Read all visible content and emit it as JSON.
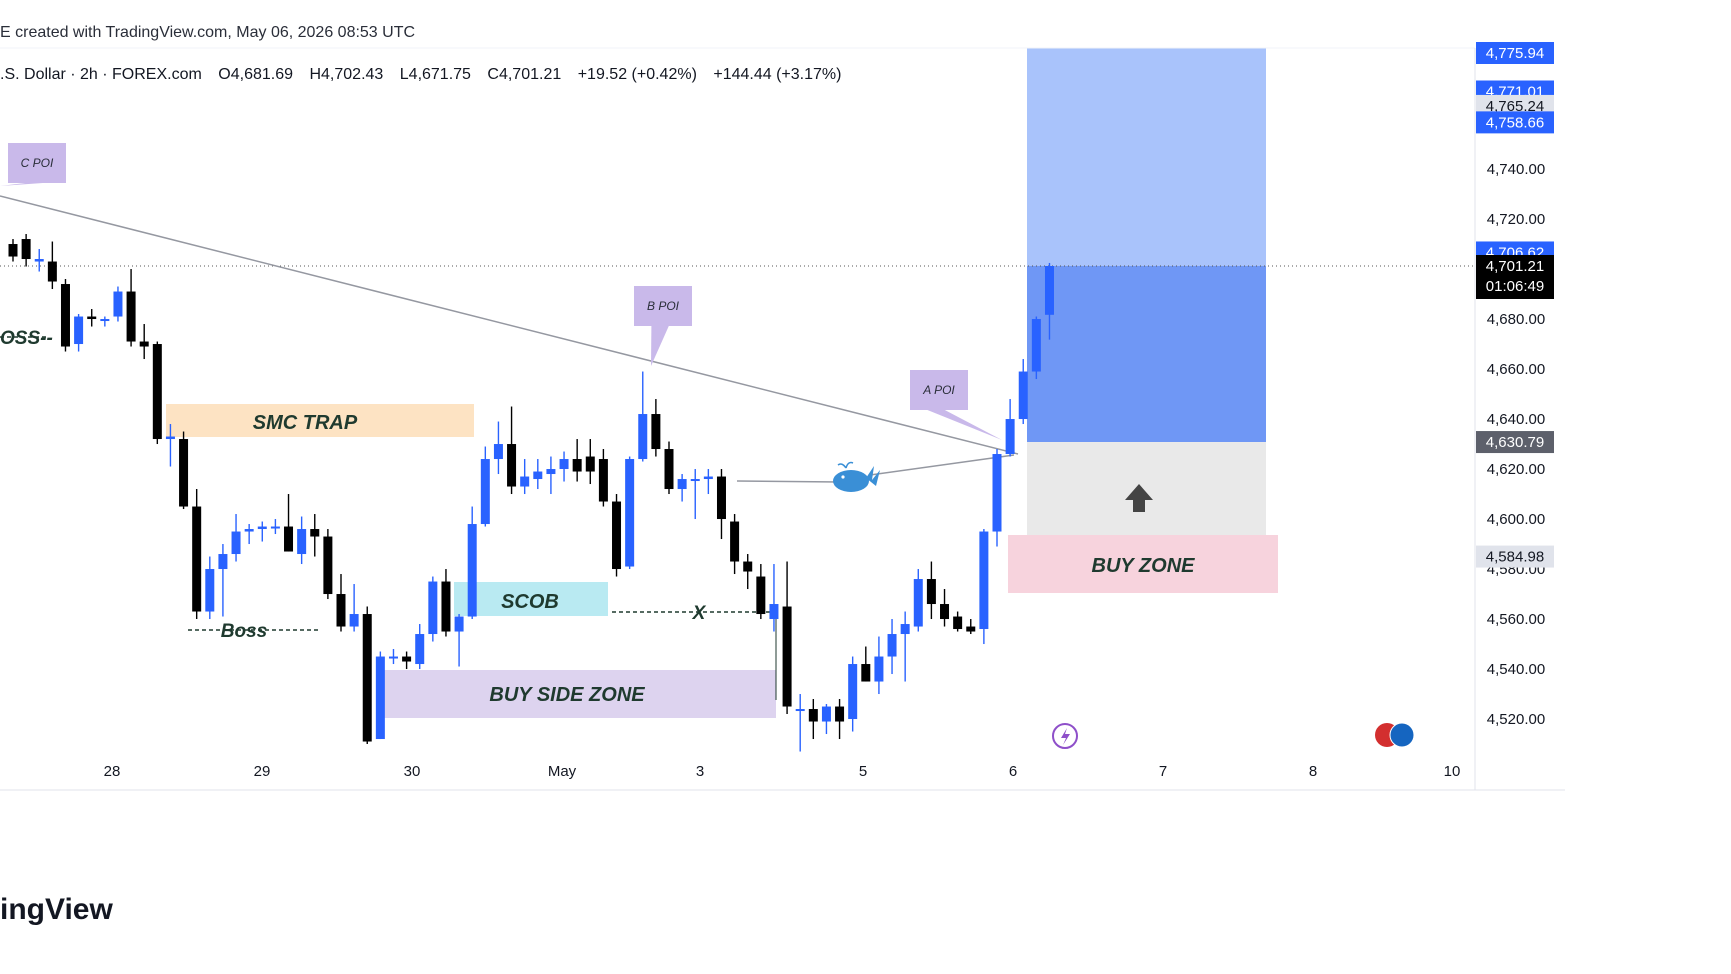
{
  "header": {
    "caption": "E created with TradingView.com, May 06, 2026 08:53 UTC"
  },
  "symbol_line": {
    "name": ".S. Dollar · 2h · FOREX.com",
    "open": "O4,681.69",
    "high": "H4,702.43",
    "low": "L4,671.75",
    "close": "C4,701.21",
    "change": "+19.52 (+0.42%)",
    "change2": "+144.44 (+3.17%)"
  },
  "footer": {
    "brand": "ingView"
  },
  "colors": {
    "bull": "#2962ff",
    "bear": "#000000",
    "target_zone_light": "#a9c3fb",
    "target_zone_dark": "#6f97f5",
    "stop_zone": "#e9e9e9",
    "buy_zone": "#f7d3dd",
    "smc_trap": "#fde3c3",
    "scob": "#b9eaf2",
    "buy_side_zone": "#ddd3ef",
    "poi_bubble": "#c9b9ea"
  },
  "chart_data": {
    "type": "candlestick",
    "ylim": [
      4505,
      4781
    ],
    "y_ticks": [
      "4,740.00",
      "4,720.00",
      "4,680.00",
      "4,660.00",
      "4,640.00",
      "4,620.00",
      "4,600.00",
      "4,560.00",
      "4,540.00",
      "4,520.00"
    ],
    "x_ticks": [
      "28",
      "29",
      "30",
      "May",
      "3",
      "5",
      "6",
      "7",
      "8",
      "10"
    ],
    "price_labels": [
      {
        "value": 4775.94,
        "text": "4,775.94",
        "style": "blue-top"
      },
      {
        "value": 4771.01,
        "text": "4,771.01",
        "style": "blue"
      },
      {
        "value": 4765.24,
        "text": "4,765.24",
        "style": "gray"
      },
      {
        "value": 4758.66,
        "text": "4,758.66",
        "style": "blue"
      },
      {
        "value": 4706.62,
        "text": "4,706.62",
        "style": "blue"
      },
      {
        "value": 4701.21,
        "text": "4,701.21",
        "style": "black"
      },
      {
        "value": 4630.79,
        "text": "4,630.79",
        "style": "darkgray"
      },
      {
        "value": 4584.98,
        "text": "4,584.98",
        "style": "gray"
      }
    ],
    "countdown": "01:06:49",
    "last_price": 4701.21,
    "candles": [
      {
        "i": 0,
        "o": 4710.0,
        "h": 4712.0,
        "l": 4703.0,
        "c": 4705.0
      },
      {
        "i": 1,
        "o": 4712.0,
        "h": 4714.0,
        "l": 4701.0,
        "c": 4704.0
      },
      {
        "i": 2,
        "o": 4703.0,
        "h": 4708.0,
        "l": 4699.0,
        "c": 4704.0
      },
      {
        "i": 3,
        "o": 4703.0,
        "h": 4711.0,
        "l": 4692.0,
        "c": 4695.0
      },
      {
        "i": 4,
        "o": 4694.0,
        "h": 4696.0,
        "l": 4667.0,
        "c": 4669.0
      },
      {
        "i": 5,
        "o": 4670.0,
        "h": 4682.0,
        "l": 4667.0,
        "c": 4681.0
      },
      {
        "i": 6,
        "o": 4681.0,
        "h": 4684.0,
        "l": 4677.0,
        "c": 4680.0
      },
      {
        "i": 7,
        "o": 4680.0,
        "h": 4681.0,
        "l": 4677.0,
        "c": 4680.0
      },
      {
        "i": 8,
        "o": 4681.0,
        "h": 4693.0,
        "l": 4679.0,
        "c": 4691.0
      },
      {
        "i": 9,
        "o": 4691.0,
        "h": 4700.0,
        "l": 4669.0,
        "c": 4671.0
      },
      {
        "i": 10,
        "o": 4671.0,
        "h": 4678.0,
        "l": 4664.0,
        "c": 4669.0
      },
      {
        "i": 11,
        "o": 4670.0,
        "h": 4671.0,
        "l": 4630.0,
        "c": 4632.0
      },
      {
        "i": 12,
        "o": 4632.0,
        "h": 4638.0,
        "l": 4621.0,
        "c": 4633.0
      },
      {
        "i": 13,
        "o": 4632.0,
        "h": 4635.0,
        "l": 4604.0,
        "c": 4605.0
      },
      {
        "i": 14,
        "o": 4605.0,
        "h": 4612.0,
        "l": 4560.0,
        "c": 4563.0
      },
      {
        "i": 15,
        "o": 4563.0,
        "h": 4585.0,
        "l": 4560.0,
        "c": 4580.0
      },
      {
        "i": 16,
        "o": 4580.0,
        "h": 4590.0,
        "l": 4561.0,
        "c": 4586.0
      },
      {
        "i": 17,
        "o": 4586.0,
        "h": 4602.0,
        "l": 4583.0,
        "c": 4595.0
      },
      {
        "i": 18,
        "o": 4595.0,
        "h": 4598.0,
        "l": 4590.0,
        "c": 4596.0
      },
      {
        "i": 19,
        "o": 4596.0,
        "h": 4599.0,
        "l": 4591.0,
        "c": 4597.0
      },
      {
        "i": 20,
        "o": 4597.0,
        "h": 4600.0,
        "l": 4594.0,
        "c": 4597.0
      },
      {
        "i": 21,
        "o": 4597.0,
        "h": 4610.0,
        "l": 4587.0,
        "c": 4587.0
      },
      {
        "i": 22,
        "o": 4586.0,
        "h": 4601.0,
        "l": 4582.0,
        "c": 4596.0
      },
      {
        "i": 23,
        "o": 4596.0,
        "h": 4602.0,
        "l": 4585.0,
        "c": 4593.0
      },
      {
        "i": 24,
        "o": 4593.0,
        "h": 4596.0,
        "l": 4568.0,
        "c": 4570.0
      },
      {
        "i": 25,
        "o": 4570.0,
        "h": 4578.0,
        "l": 4555.0,
        "c": 4557.0
      },
      {
        "i": 26,
        "o": 4557.0,
        "h": 4574.0,
        "l": 4555.0,
        "c": 4562.0
      },
      {
        "i": 27,
        "o": 4562.0,
        "h": 4565.0,
        "l": 4510.0,
        "c": 4511.0
      },
      {
        "i": 28,
        "o": 4512.0,
        "h": 4547.0,
        "l": 4512.0,
        "c": 4545.0
      },
      {
        "i": 29,
        "o": 4545.0,
        "h": 4548.0,
        "l": 4542.0,
        "c": 4545.0
      },
      {
        "i": 30,
        "o": 4545.0,
        "h": 4547.0,
        "l": 4540.0,
        "c": 4543.0
      },
      {
        "i": 31,
        "o": 4542.0,
        "h": 4558.0,
        "l": 4540.0,
        "c": 4554.0
      },
      {
        "i": 32,
        "o": 4554.0,
        "h": 4577.0,
        "l": 4551.0,
        "c": 4575.0
      },
      {
        "i": 33,
        "o": 4575.0,
        "h": 4580.0,
        "l": 4553.0,
        "c": 4555.0
      },
      {
        "i": 34,
        "o": 4555.0,
        "h": 4562.0,
        "l": 4541.0,
        "c": 4561.0
      },
      {
        "i": 35,
        "o": 4561.0,
        "h": 4605.0,
        "l": 4560.0,
        "c": 4598.0
      },
      {
        "i": 36,
        "o": 4598.0,
        "h": 4629.0,
        "l": 4597.0,
        "c": 4624.0
      },
      {
        "i": 37,
        "o": 4624.0,
        "h": 4639.0,
        "l": 4618.0,
        "c": 4630.0
      },
      {
        "i": 38,
        "o": 4630.0,
        "h": 4645.0,
        "l": 4610.0,
        "c": 4613.0
      },
      {
        "i": 39,
        "o": 4613.0,
        "h": 4624.0,
        "l": 4610.0,
        "c": 4617.0
      },
      {
        "i": 40,
        "o": 4616.0,
        "h": 4624.0,
        "l": 4612.0,
        "c": 4619.0
      },
      {
        "i": 41,
        "o": 4618.0,
        "h": 4625.0,
        "l": 4610.0,
        "c": 4620.0
      },
      {
        "i": 42,
        "o": 4620.0,
        "h": 4627.0,
        "l": 4615.0,
        "c": 4624.0
      },
      {
        "i": 43,
        "o": 4624.0,
        "h": 4632.0,
        "l": 4615.0,
        "c": 4619.0
      },
      {
        "i": 44,
        "o": 4625.0,
        "h": 4632.0,
        "l": 4614.0,
        "c": 4619.0
      },
      {
        "i": 45,
        "o": 4624.0,
        "h": 4628.0,
        "l": 4605.0,
        "c": 4607.0
      },
      {
        "i": 46,
        "o": 4607.0,
        "h": 4610.0,
        "l": 4577.0,
        "c": 4580.0
      },
      {
        "i": 47,
        "o": 4581.0,
        "h": 4625.0,
        "l": 4580.0,
        "c": 4624.0
      },
      {
        "i": 48,
        "o": 4624.0,
        "h": 4659.0,
        "l": 4623.0,
        "c": 4642.0
      },
      {
        "i": 49,
        "o": 4642.0,
        "h": 4648.0,
        "l": 4625.0,
        "c": 4628.0
      },
      {
        "i": 50,
        "o": 4628.0,
        "h": 4631.0,
        "l": 4610.0,
        "c": 4612.0
      },
      {
        "i": 51,
        "o": 4612.0,
        "h": 4618.0,
        "l": 4607.0,
        "c": 4616.0
      },
      {
        "i": 52,
        "o": 4616.0,
        "h": 4620.0,
        "l": 4600.0,
        "c": 4616.0
      },
      {
        "i": 53,
        "o": 4616.0,
        "h": 4620.0,
        "l": 4610.0,
        "c": 4617.0
      },
      {
        "i": 54,
        "o": 4617.0,
        "h": 4620.0,
        "l": 4592.0,
        "c": 4600.0
      },
      {
        "i": 55,
        "o": 4599.0,
        "h": 4602.0,
        "l": 4578.0,
        "c": 4583.0
      },
      {
        "i": 56,
        "o": 4583.0,
        "h": 4586.0,
        "l": 4572.0,
        "c": 4579.0
      },
      {
        "i": 57,
        "o": 4577.0,
        "h": 4582.0,
        "l": 4560.0,
        "c": 4562.0
      },
      {
        "i": 58,
        "o": 4560.0,
        "h": 4582.0,
        "l": 4555.0,
        "c": 4566.0
      },
      {
        "i": 59,
        "o": 4565.0,
        "h": 4583.0,
        "l": 4522.0,
        "c": 4525.0
      },
      {
        "i": 60,
        "o": 4524.0,
        "h": 4530.0,
        "l": 4507.0,
        "c": 4524.0
      },
      {
        "i": 61,
        "o": 4524.0,
        "h": 4528.0,
        "l": 4512.0,
        "c": 4519.0
      },
      {
        "i": 62,
        "o": 4519.0,
        "h": 4526.0,
        "l": 4514.0,
        "c": 4525.0
      },
      {
        "i": 63,
        "o": 4525.0,
        "h": 4528.0,
        "l": 4512.0,
        "c": 4519.0
      },
      {
        "i": 64,
        "o": 4520.0,
        "h": 4545.0,
        "l": 4515.0,
        "c": 4542.0
      },
      {
        "i": 65,
        "o": 4542.0,
        "h": 4549.0,
        "l": 4535.0,
        "c": 4535.0
      },
      {
        "i": 66,
        "o": 4535.0,
        "h": 4553.0,
        "l": 4530.0,
        "c": 4545.0
      },
      {
        "i": 67,
        "o": 4545.0,
        "h": 4560.0,
        "l": 4538.0,
        "c": 4554.0
      },
      {
        "i": 68,
        "o": 4554.0,
        "h": 4563.0,
        "l": 4535.0,
        "c": 4558.0
      },
      {
        "i": 69,
        "o": 4557.0,
        "h": 4580.0,
        "l": 4555.0,
        "c": 4576.0
      },
      {
        "i": 70,
        "o": 4576.0,
        "h": 4583.0,
        "l": 4560.0,
        "c": 4566.0
      },
      {
        "i": 71,
        "o": 4566.0,
        "h": 4572.0,
        "l": 4557.0,
        "c": 4560.0
      },
      {
        "i": 72,
        "o": 4561.0,
        "h": 4563.0,
        "l": 4555.0,
        "c": 4556.0
      },
      {
        "i": 73,
        "o": 4557.0,
        "h": 4560.0,
        "l": 4554.0,
        "c": 4555.0
      },
      {
        "i": 74,
        "o": 4556.0,
        "h": 4596.0,
        "l": 4550.0,
        "c": 4595.0
      },
      {
        "i": 75,
        "o": 4595.0,
        "h": 4628.0,
        "l": 4589.0,
        "c": 4626.0
      },
      {
        "i": 76,
        "o": 4626.0,
        "h": 4648.0,
        "l": 4625.0,
        "c": 4640.0
      },
      {
        "i": 77,
        "o": 4640.0,
        "h": 4664.0,
        "l": 4638.0,
        "c": 4659.0
      },
      {
        "i": 78,
        "o": 4659.0,
        "h": 4681.0,
        "l": 4656.0,
        "c": 4680.0
      },
      {
        "i": 79,
        "o": 4681.69,
        "h": 4702.43,
        "l": 4671.75,
        "c": 4701.21
      }
    ],
    "annotations": {
      "poi_labels": [
        "C POI",
        "B POI",
        "A POI"
      ],
      "zones": [
        "SMC TRAP",
        "SCOB",
        "BUY SIDE ZONE",
        "BUY ZONE"
      ],
      "markers": [
        "OSS--",
        "Boss",
        "X"
      ]
    }
  }
}
